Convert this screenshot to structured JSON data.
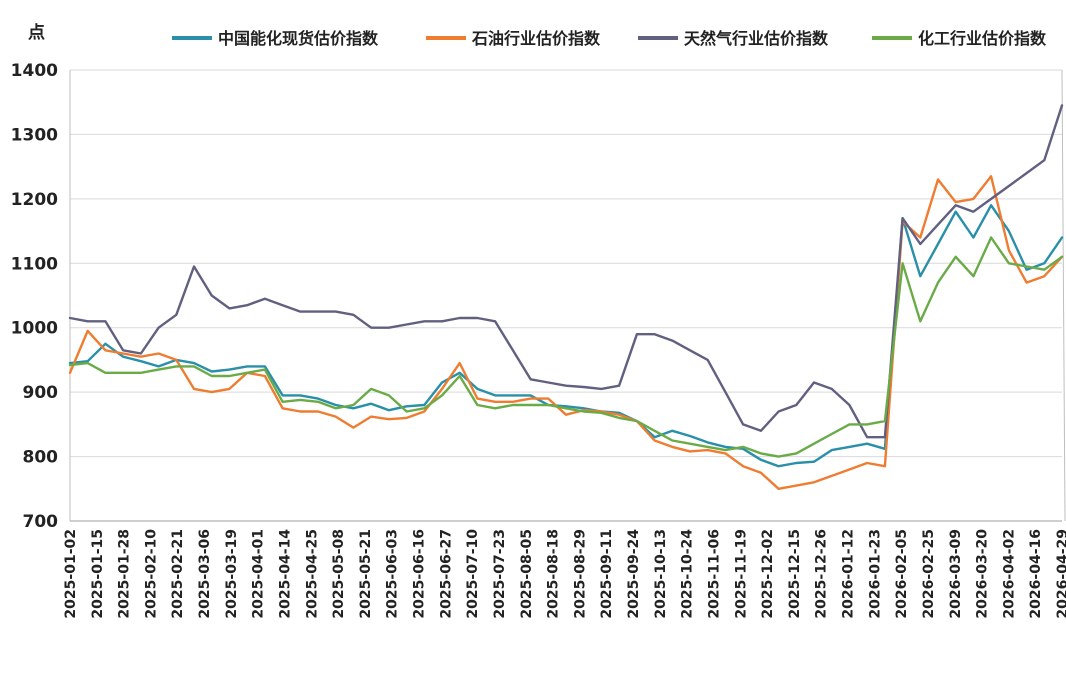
{
  "chart_data": {
    "type": "line",
    "ylabel": "点",
    "ylim": [
      700,
      1400
    ],
    "yticks": [
      700,
      800,
      900,
      1000,
      1100,
      1200,
      1300,
      1400
    ],
    "grid": true,
    "legend": "top",
    "x_ticks": [
      "2025-01-02",
      "2025-01-15",
      "2025-01-28",
      "2025-02-10",
      "2025-02-21",
      "2025-03-06",
      "2025-03-19",
      "2025-04-01",
      "2025-04-14",
      "2025-04-25",
      "2025-05-08",
      "2025-05-21",
      "2025-06-03",
      "2025-06-16",
      "2025-06-27",
      "2025-07-10",
      "2025-07-23",
      "2025-08-05",
      "2025-08-18",
      "2025-08-29",
      "2025-09-11",
      "2025-09-24",
      "2025-10-13",
      "2025-10-24",
      "2025-11-06",
      "2025-11-19",
      "2025-12-02",
      "2025-12-15",
      "2025-12-26",
      "2026-01-12",
      "2026-01-23",
      "2026-02-05",
      "2026-02-25",
      "2026-03-09",
      "2026-03-20",
      "2026-04-02",
      "2026-04-16",
      "2026-04-29"
    ],
    "series": [
      {
        "name": "中国能化现货估价指数",
        "color": "#2a8fa8",
        "values": [
          945,
          948,
          975,
          955,
          948,
          940,
          950,
          945,
          932,
          935,
          940,
          940,
          895,
          895,
          890,
          880,
          875,
          882,
          872,
          878,
          880,
          915,
          930,
          905,
          895,
          895,
          895,
          880,
          878,
          875,
          870,
          868,
          855,
          830,
          840,
          832,
          822,
          815,
          812,
          795,
          785,
          790,
          792,
          810,
          815,
          820,
          812,
          1170,
          1080,
          1130,
          1180,
          1140,
          1190,
          1150,
          1090,
          1100,
          1140
        ]
      },
      {
        "name": "石油行业估价指数",
        "color": "#ee7d31",
        "values": [
          930,
          995,
          965,
          960,
          955,
          960,
          950,
          905,
          900,
          905,
          930,
          925,
          875,
          870,
          870,
          862,
          845,
          862,
          858,
          860,
          870,
          905,
          945,
          890,
          885,
          885,
          890,
          890,
          865,
          872,
          870,
          865,
          855,
          825,
          815,
          808,
          810,
          805,
          785,
          775,
          750,
          755,
          760,
          770,
          780,
          790,
          785,
          1165,
          1140,
          1230,
          1195,
          1200,
          1235,
          1120,
          1070,
          1080,
          1110
        ]
      },
      {
        "name": "天然气行业估价指数",
        "color": "#616080",
        "values": [
          1015,
          1010,
          1010,
          965,
          960,
          1000,
          1020,
          1095,
          1050,
          1030,
          1035,
          1045,
          1035,
          1025,
          1025,
          1025,
          1020,
          1000,
          1000,
          1005,
          1010,
          1010,
          1015,
          1015,
          1010,
          965,
          920,
          915,
          910,
          908,
          905,
          910,
          990,
          990,
          980,
          965,
          950,
          900,
          850,
          840,
          870,
          880,
          915,
          905,
          880,
          830,
          830,
          1170,
          1130,
          1160,
          1190,
          1180,
          1200,
          1220,
          1240,
          1260,
          1345
        ]
      },
      {
        "name": "化工行业估价指数",
        "color": "#6aab48",
        "values": [
          942,
          945,
          930,
          930,
          930,
          935,
          940,
          940,
          925,
          925,
          930,
          935,
          885,
          888,
          885,
          875,
          880,
          905,
          895,
          870,
          875,
          895,
          925,
          880,
          875,
          880,
          880,
          880,
          875,
          870,
          868,
          860,
          855,
          840,
          825,
          820,
          815,
          810,
          815,
          805,
          800,
          805,
          820,
          835,
          850,
          850,
          855,
          1100,
          1010,
          1070,
          1110,
          1080,
          1140,
          1100,
          1095,
          1090,
          1110
        ]
      }
    ]
  }
}
